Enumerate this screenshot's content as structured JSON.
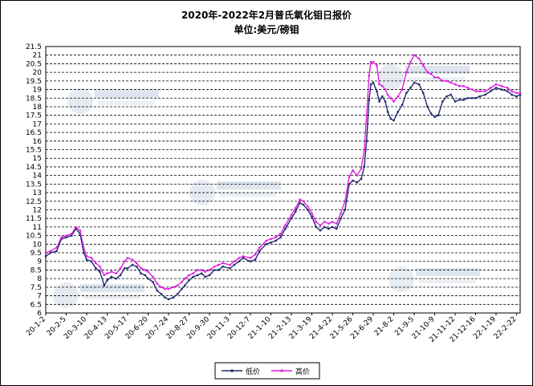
{
  "chart_data": {
    "type": "line",
    "title": "2020年-2022年2月普氏氧化钼日报价",
    "subtitle": "单位:美元/磅钼",
    "ylim": [
      6,
      21.5
    ],
    "y_ticks": [
      "6",
      "6.5",
      "7",
      "7.5",
      "8",
      "8.5",
      "9",
      "9.5",
      "10",
      "10.5",
      "11",
      "11.5",
      "12",
      "12.5",
      "13",
      "13.5",
      "14",
      "14.5",
      "15",
      "15.5",
      "16",
      "16.5",
      "17",
      "17.5",
      "18",
      "18.5",
      "19",
      "19.5",
      "20",
      "20.5",
      "21",
      "21.5"
    ],
    "x_ticks": [
      "20-1-2",
      "20-2-5",
      "20-3-10",
      "20-4-13",
      "20-5-17",
      "20-6-20",
      "20-7-24",
      "20-8-27",
      "20-9-30",
      "20-11-3",
      "20-12-7",
      "21-1-10",
      "21-2-13",
      "21-3-19",
      "21-4-22",
      "21-5-26",
      "21-6-29",
      "21-8-2",
      "21-9-5",
      "21-10-9",
      "21-11-12",
      "21-12-16",
      "22-1-19",
      "22-2-22"
    ],
    "x_range": [
      "20-1-2",
      "22-2-28"
    ],
    "grid": "horizontal dashed",
    "legend_position": "bottom",
    "series": [
      {
        "name": "低价",
        "color": "#1f2a6e",
        "points": [
          [
            "20-1-2",
            9.3
          ],
          [
            "20-1-10",
            9.5
          ],
          [
            "20-1-20",
            9.6
          ],
          [
            "20-1-28",
            10.3
          ],
          [
            "20-2-5",
            10.4
          ],
          [
            "20-2-14",
            10.5
          ],
          [
            "20-2-21",
            10.9
          ],
          [
            "20-2-28",
            10.6
          ],
          [
            "20-3-5",
            9.5
          ],
          [
            "20-3-10",
            9.1
          ],
          [
            "20-3-18",
            9.0
          ],
          [
            "20-3-25",
            8.6
          ],
          [
            "20-4-1",
            8.4
          ],
          [
            "20-4-8",
            7.6
          ],
          [
            "20-4-13",
            7.9
          ],
          [
            "20-4-20",
            8.1
          ],
          [
            "20-4-28",
            8.0
          ],
          [
            "20-5-5",
            8.2
          ],
          [
            "20-5-12",
            8.6
          ],
          [
            "20-5-17",
            8.6
          ],
          [
            "20-5-25",
            8.8
          ],
          [
            "20-6-1",
            8.7
          ],
          [
            "20-6-8",
            8.3
          ],
          [
            "20-6-15",
            8.2
          ],
          [
            "20-6-20",
            8.0
          ],
          [
            "20-6-28",
            7.8
          ],
          [
            "20-7-5",
            7.3
          ],
          [
            "20-7-12",
            7.1
          ],
          [
            "20-7-18",
            6.9
          ],
          [
            "20-7-24",
            6.8
          ],
          [
            "20-8-1",
            6.9
          ],
          [
            "20-8-8",
            7.1
          ],
          [
            "20-8-15",
            7.4
          ],
          [
            "20-8-20",
            7.6
          ],
          [
            "20-8-27",
            7.9
          ],
          [
            "20-9-3",
            8.1
          ],
          [
            "20-9-10",
            8.2
          ],
          [
            "20-9-17",
            8.3
          ],
          [
            "20-9-23",
            8.1
          ],
          [
            "20-9-30",
            8.2
          ],
          [
            "20-10-8",
            8.5
          ],
          [
            "20-10-15",
            8.5
          ],
          [
            "20-10-22",
            8.7
          ],
          [
            "20-11-3",
            8.6
          ],
          [
            "20-11-10",
            8.8
          ],
          [
            "20-11-18",
            9.0
          ],
          [
            "20-11-25",
            9.2
          ],
          [
            "20-12-7",
            9.0
          ],
          [
            "20-12-15",
            9.1
          ],
          [
            "20-12-22",
            9.6
          ],
          [
            "21-1-2",
            10.0
          ],
          [
            "21-1-10",
            10.1
          ],
          [
            "21-1-18",
            10.2
          ],
          [
            "21-1-26",
            10.4
          ],
          [
            "21-2-3",
            10.9
          ],
          [
            "21-2-13",
            11.5
          ],
          [
            "21-2-20",
            11.9
          ],
          [
            "21-2-27",
            12.4
          ],
          [
            "21-3-5",
            12.3
          ],
          [
            "21-3-12",
            12.0
          ],
          [
            "21-3-19",
            11.6
          ],
          [
            "21-3-26",
            11.0
          ],
          [
            "21-4-2",
            10.8
          ],
          [
            "21-4-9",
            11.0
          ],
          [
            "21-4-16",
            10.9
          ],
          [
            "21-4-22",
            11.0
          ],
          [
            "21-4-29",
            10.9
          ],
          [
            "21-5-6",
            11.5
          ],
          [
            "21-5-13",
            12.0
          ],
          [
            "21-5-20",
            13.5
          ],
          [
            "21-5-26",
            13.7
          ],
          [
            "21-6-2",
            13.6
          ],
          [
            "21-6-9",
            13.8
          ],
          [
            "21-6-14",
            14.5
          ],
          [
            "21-6-18",
            16.0
          ],
          [
            "21-6-22",
            18.4
          ],
          [
            "21-6-25",
            19.3
          ],
          [
            "21-6-29",
            19.4
          ],
          [
            "21-7-5",
            18.9
          ],
          [
            "21-7-9",
            18.3
          ],
          [
            "21-7-14",
            18.6
          ],
          [
            "21-7-19",
            18.3
          ],
          [
            "21-7-23",
            17.7
          ],
          [
            "21-7-28",
            17.3
          ],
          [
            "21-8-2",
            17.2
          ],
          [
            "21-8-9",
            17.7
          ],
          [
            "21-8-16",
            18.1
          ],
          [
            "21-8-23",
            18.8
          ],
          [
            "21-8-30",
            19.1
          ],
          [
            "21-9-5",
            19.4
          ],
          [
            "21-9-13",
            19.3
          ],
          [
            "21-9-20",
            18.8
          ],
          [
            "21-9-27",
            18.0
          ],
          [
            "21-10-3",
            17.6
          ],
          [
            "21-10-9",
            17.4
          ],
          [
            "21-10-15",
            17.5
          ],
          [
            "21-10-22",
            18.3
          ],
          [
            "21-10-29",
            18.6
          ],
          [
            "21-11-5",
            18.7
          ],
          [
            "21-11-12",
            18.3
          ],
          [
            "21-11-19",
            18.4
          ],
          [
            "21-11-26",
            18.4
          ],
          [
            "21-12-3",
            18.5
          ],
          [
            "21-12-10",
            18.5
          ],
          [
            "21-12-16",
            18.5
          ],
          [
            "21-12-23",
            18.6
          ],
          [
            "22-1-1",
            18.7
          ],
          [
            "22-1-10",
            18.9
          ],
          [
            "22-1-19",
            19.1
          ],
          [
            "22-1-28",
            19.0
          ],
          [
            "22-2-7",
            18.9
          ],
          [
            "22-2-14",
            18.7
          ],
          [
            "22-2-22",
            18.6
          ],
          [
            "22-2-28",
            18.7
          ]
        ]
      },
      {
        "name": "高价",
        "color": "#e020e0",
        "points": [
          [
            "20-1-2",
            9.5
          ],
          [
            "20-1-10",
            9.6
          ],
          [
            "20-1-20",
            9.8
          ],
          [
            "20-1-28",
            10.4
          ],
          [
            "20-2-5",
            10.5
          ],
          [
            "20-2-14",
            10.6
          ],
          [
            "20-2-21",
            11.0
          ],
          [
            "20-2-28",
            10.8
          ],
          [
            "20-3-5",
            9.8
          ],
          [
            "20-3-10",
            9.3
          ],
          [
            "20-3-18",
            9.2
          ],
          [
            "20-3-25",
            8.9
          ],
          [
            "20-4-1",
            8.7
          ],
          [
            "20-4-8",
            8.2
          ],
          [
            "20-4-13",
            8.3
          ],
          [
            "20-4-20",
            8.4
          ],
          [
            "20-4-28",
            8.3
          ],
          [
            "20-5-5",
            8.6
          ],
          [
            "20-5-12",
            9.0
          ],
          [
            "20-5-17",
            9.2
          ],
          [
            "20-5-25",
            9.1
          ],
          [
            "20-6-1",
            8.9
          ],
          [
            "20-6-8",
            8.6
          ],
          [
            "20-6-15",
            8.5
          ],
          [
            "20-6-20",
            8.4
          ],
          [
            "20-6-28",
            8.1
          ],
          [
            "20-7-5",
            7.7
          ],
          [
            "20-7-12",
            7.5
          ],
          [
            "20-7-18",
            7.4
          ],
          [
            "20-7-24",
            7.4
          ],
          [
            "20-8-1",
            7.5
          ],
          [
            "20-8-8",
            7.6
          ],
          [
            "20-8-15",
            7.8
          ],
          [
            "20-8-20",
            8.0
          ],
          [
            "20-8-27",
            8.2
          ],
          [
            "20-9-3",
            8.3
          ],
          [
            "20-9-10",
            8.5
          ],
          [
            "20-9-17",
            8.5
          ],
          [
            "20-9-23",
            8.4
          ],
          [
            "20-9-30",
            8.5
          ],
          [
            "20-10-8",
            8.7
          ],
          [
            "20-10-15",
            8.8
          ],
          [
            "20-10-22",
            8.9
          ],
          [
            "20-11-3",
            8.8
          ],
          [
            "20-11-10",
            9.0
          ],
          [
            "20-11-18",
            9.2
          ],
          [
            "20-11-25",
            9.3
          ],
          [
            "20-12-7",
            9.2
          ],
          [
            "20-12-15",
            9.4
          ],
          [
            "20-12-22",
            9.8
          ],
          [
            "21-1-2",
            10.2
          ],
          [
            "21-1-10",
            10.3
          ],
          [
            "21-1-18",
            10.4
          ],
          [
            "21-1-26",
            10.6
          ],
          [
            "21-2-3",
            11.1
          ],
          [
            "21-2-13",
            11.7
          ],
          [
            "21-2-20",
            12.1
          ],
          [
            "21-2-27",
            12.6
          ],
          [
            "21-3-5",
            12.5
          ],
          [
            "21-3-12",
            12.2
          ],
          [
            "21-3-19",
            11.8
          ],
          [
            "21-3-26",
            11.3
          ],
          [
            "21-4-2",
            11.1
          ],
          [
            "21-4-9",
            11.3
          ],
          [
            "21-4-16",
            11.2
          ],
          [
            "21-4-22",
            11.3
          ],
          [
            "21-4-29",
            11.2
          ],
          [
            "21-5-6",
            11.8
          ],
          [
            "21-5-13",
            12.5
          ],
          [
            "21-5-20",
            13.9
          ],
          [
            "21-5-26",
            14.3
          ],
          [
            "21-6-2",
            14.0
          ],
          [
            "21-6-9",
            14.4
          ],
          [
            "21-6-14",
            15.5
          ],
          [
            "21-6-18",
            17.5
          ],
          [
            "21-6-22",
            19.8
          ],
          [
            "21-6-25",
            20.6
          ],
          [
            "21-6-29",
            20.6
          ],
          [
            "21-7-5",
            20.4
          ],
          [
            "21-7-9",
            19.3
          ],
          [
            "21-7-14",
            19.2
          ],
          [
            "21-7-19",
            19.0
          ],
          [
            "21-7-23",
            18.7
          ],
          [
            "21-7-28",
            18.5
          ],
          [
            "21-8-2",
            18.3
          ],
          [
            "21-8-9",
            18.6
          ],
          [
            "21-8-16",
            19.0
          ],
          [
            "21-8-23",
            20.0
          ],
          [
            "21-8-30",
            20.6
          ],
          [
            "21-9-5",
            21.0
          ],
          [
            "21-9-13",
            20.8
          ],
          [
            "21-9-20",
            20.4
          ],
          [
            "21-9-27",
            20.0
          ],
          [
            "21-10-3",
            19.9
          ],
          [
            "21-10-9",
            19.7
          ],
          [
            "21-10-15",
            19.7
          ],
          [
            "21-10-22",
            19.5
          ],
          [
            "21-10-29",
            19.5
          ],
          [
            "21-11-5",
            19.4
          ],
          [
            "21-11-12",
            19.3
          ],
          [
            "21-11-19",
            19.2
          ],
          [
            "21-11-26",
            19.2
          ],
          [
            "21-12-3",
            19.1
          ],
          [
            "21-12-10",
            19.0
          ],
          [
            "21-12-16",
            18.9
          ],
          [
            "21-12-23",
            18.9
          ],
          [
            "22-1-1",
            18.9
          ],
          [
            "22-1-10",
            19.1
          ],
          [
            "22-1-19",
            19.3
          ],
          [
            "22-1-28",
            19.2
          ],
          [
            "22-2-7",
            19.1
          ],
          [
            "22-2-14",
            18.9
          ],
          [
            "22-2-22",
            18.8
          ],
          [
            "22-2-28",
            18.8
          ]
        ]
      }
    ],
    "watermark": "中华商务网 ChinaCCM"
  }
}
